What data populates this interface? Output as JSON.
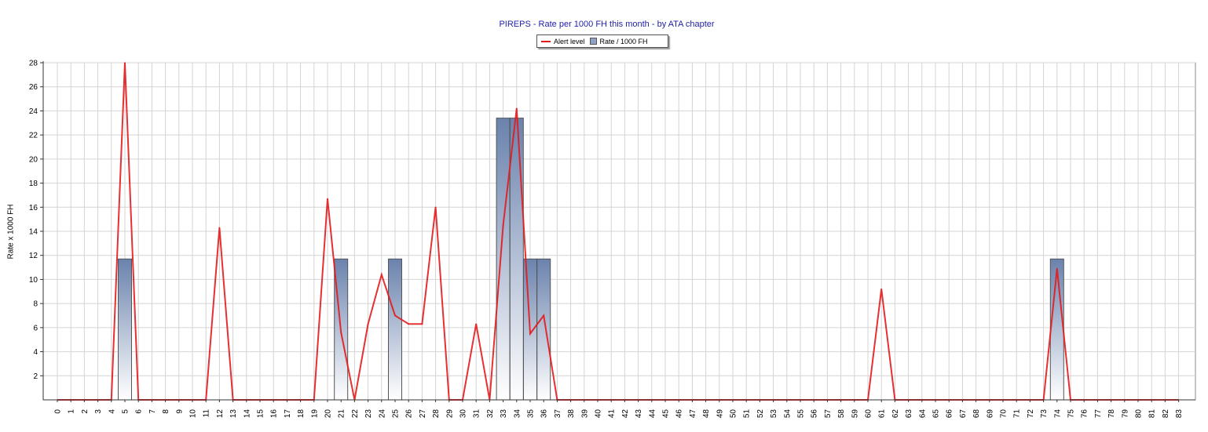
{
  "chart_data": {
    "type": "bar",
    "title": "PIREPS - Rate per 1000 FH this month - by ATA chapter",
    "ylabel": "Rate x 1000 FH",
    "xlabel": "",
    "ylim": [
      0,
      28
    ],
    "yticks": [
      2,
      4,
      6,
      8,
      10,
      12,
      14,
      16,
      18,
      20,
      22,
      24,
      26,
      28
    ],
    "grid": true,
    "legend_position": "top-center",
    "categories": [
      "0",
      "1",
      "2",
      "3",
      "4",
      "5",
      "6",
      "7",
      "8",
      "9",
      "10",
      "11",
      "12",
      "13",
      "14",
      "15",
      "16",
      "17",
      "18",
      "19",
      "20",
      "21",
      "22",
      "23",
      "24",
      "25",
      "26",
      "27",
      "28",
      "29",
      "30",
      "31",
      "32",
      "33",
      "34",
      "35",
      "36",
      "37",
      "38",
      "39",
      "40",
      "41",
      "42",
      "43",
      "44",
      "45",
      "46",
      "47",
      "48",
      "49",
      "50",
      "51",
      "52",
      "53",
      "54",
      "55",
      "56",
      "57",
      "58",
      "59",
      "60",
      "61",
      "62",
      "63",
      "64",
      "65",
      "66",
      "67",
      "68",
      "69",
      "70",
      "71",
      "72",
      "73",
      "74",
      "75",
      "76",
      "77",
      "78",
      "79",
      "80",
      "81",
      "82",
      "83"
    ],
    "series": [
      {
        "name": "Rate / 1000 FH",
        "type": "bar",
        "color": "#6a82ad",
        "values": [
          0,
          0,
          0,
          0,
          0,
          11.7,
          0,
          0,
          0,
          0,
          0,
          0,
          0,
          0,
          0,
          0,
          0,
          0,
          0,
          0,
          0,
          11.7,
          0,
          0,
          0,
          11.7,
          0,
          0,
          0,
          0,
          0,
          0,
          0,
          23.4,
          23.4,
          11.7,
          11.7,
          0,
          0,
          0,
          0,
          0,
          0,
          0,
          0,
          0,
          0,
          0,
          0,
          0,
          0,
          0,
          0,
          0,
          0,
          0,
          0,
          0,
          0,
          0,
          0,
          0,
          0,
          0,
          0,
          0,
          0,
          0,
          0,
          0,
          0,
          0,
          0,
          0,
          11.7,
          0,
          0,
          0,
          0,
          0,
          0,
          0,
          0,
          0
        ]
      },
      {
        "name": "Alert level",
        "type": "line",
        "color": "#e31a1c",
        "values": [
          0,
          0,
          0,
          0,
          0,
          28,
          0,
          0,
          0,
          0,
          0,
          0,
          14.3,
          0,
          0,
          0,
          0,
          0,
          0,
          0,
          16.7,
          5.6,
          0,
          6.3,
          10.4,
          7,
          6.3,
          6.3,
          16,
          0,
          0,
          6.3,
          0,
          14.5,
          24.2,
          5.5,
          7,
          0,
          0,
          0,
          0,
          0,
          0,
          0,
          0,
          0,
          0,
          0,
          0,
          0,
          0,
          0,
          0,
          0,
          0,
          0,
          0,
          0,
          0,
          0,
          0,
          9.2,
          0,
          0,
          0,
          0,
          0,
          0,
          0,
          0,
          0,
          0,
          0,
          0,
          10.9,
          0,
          0,
          0,
          0,
          0,
          0,
          0,
          0,
          0
        ]
      }
    ]
  }
}
